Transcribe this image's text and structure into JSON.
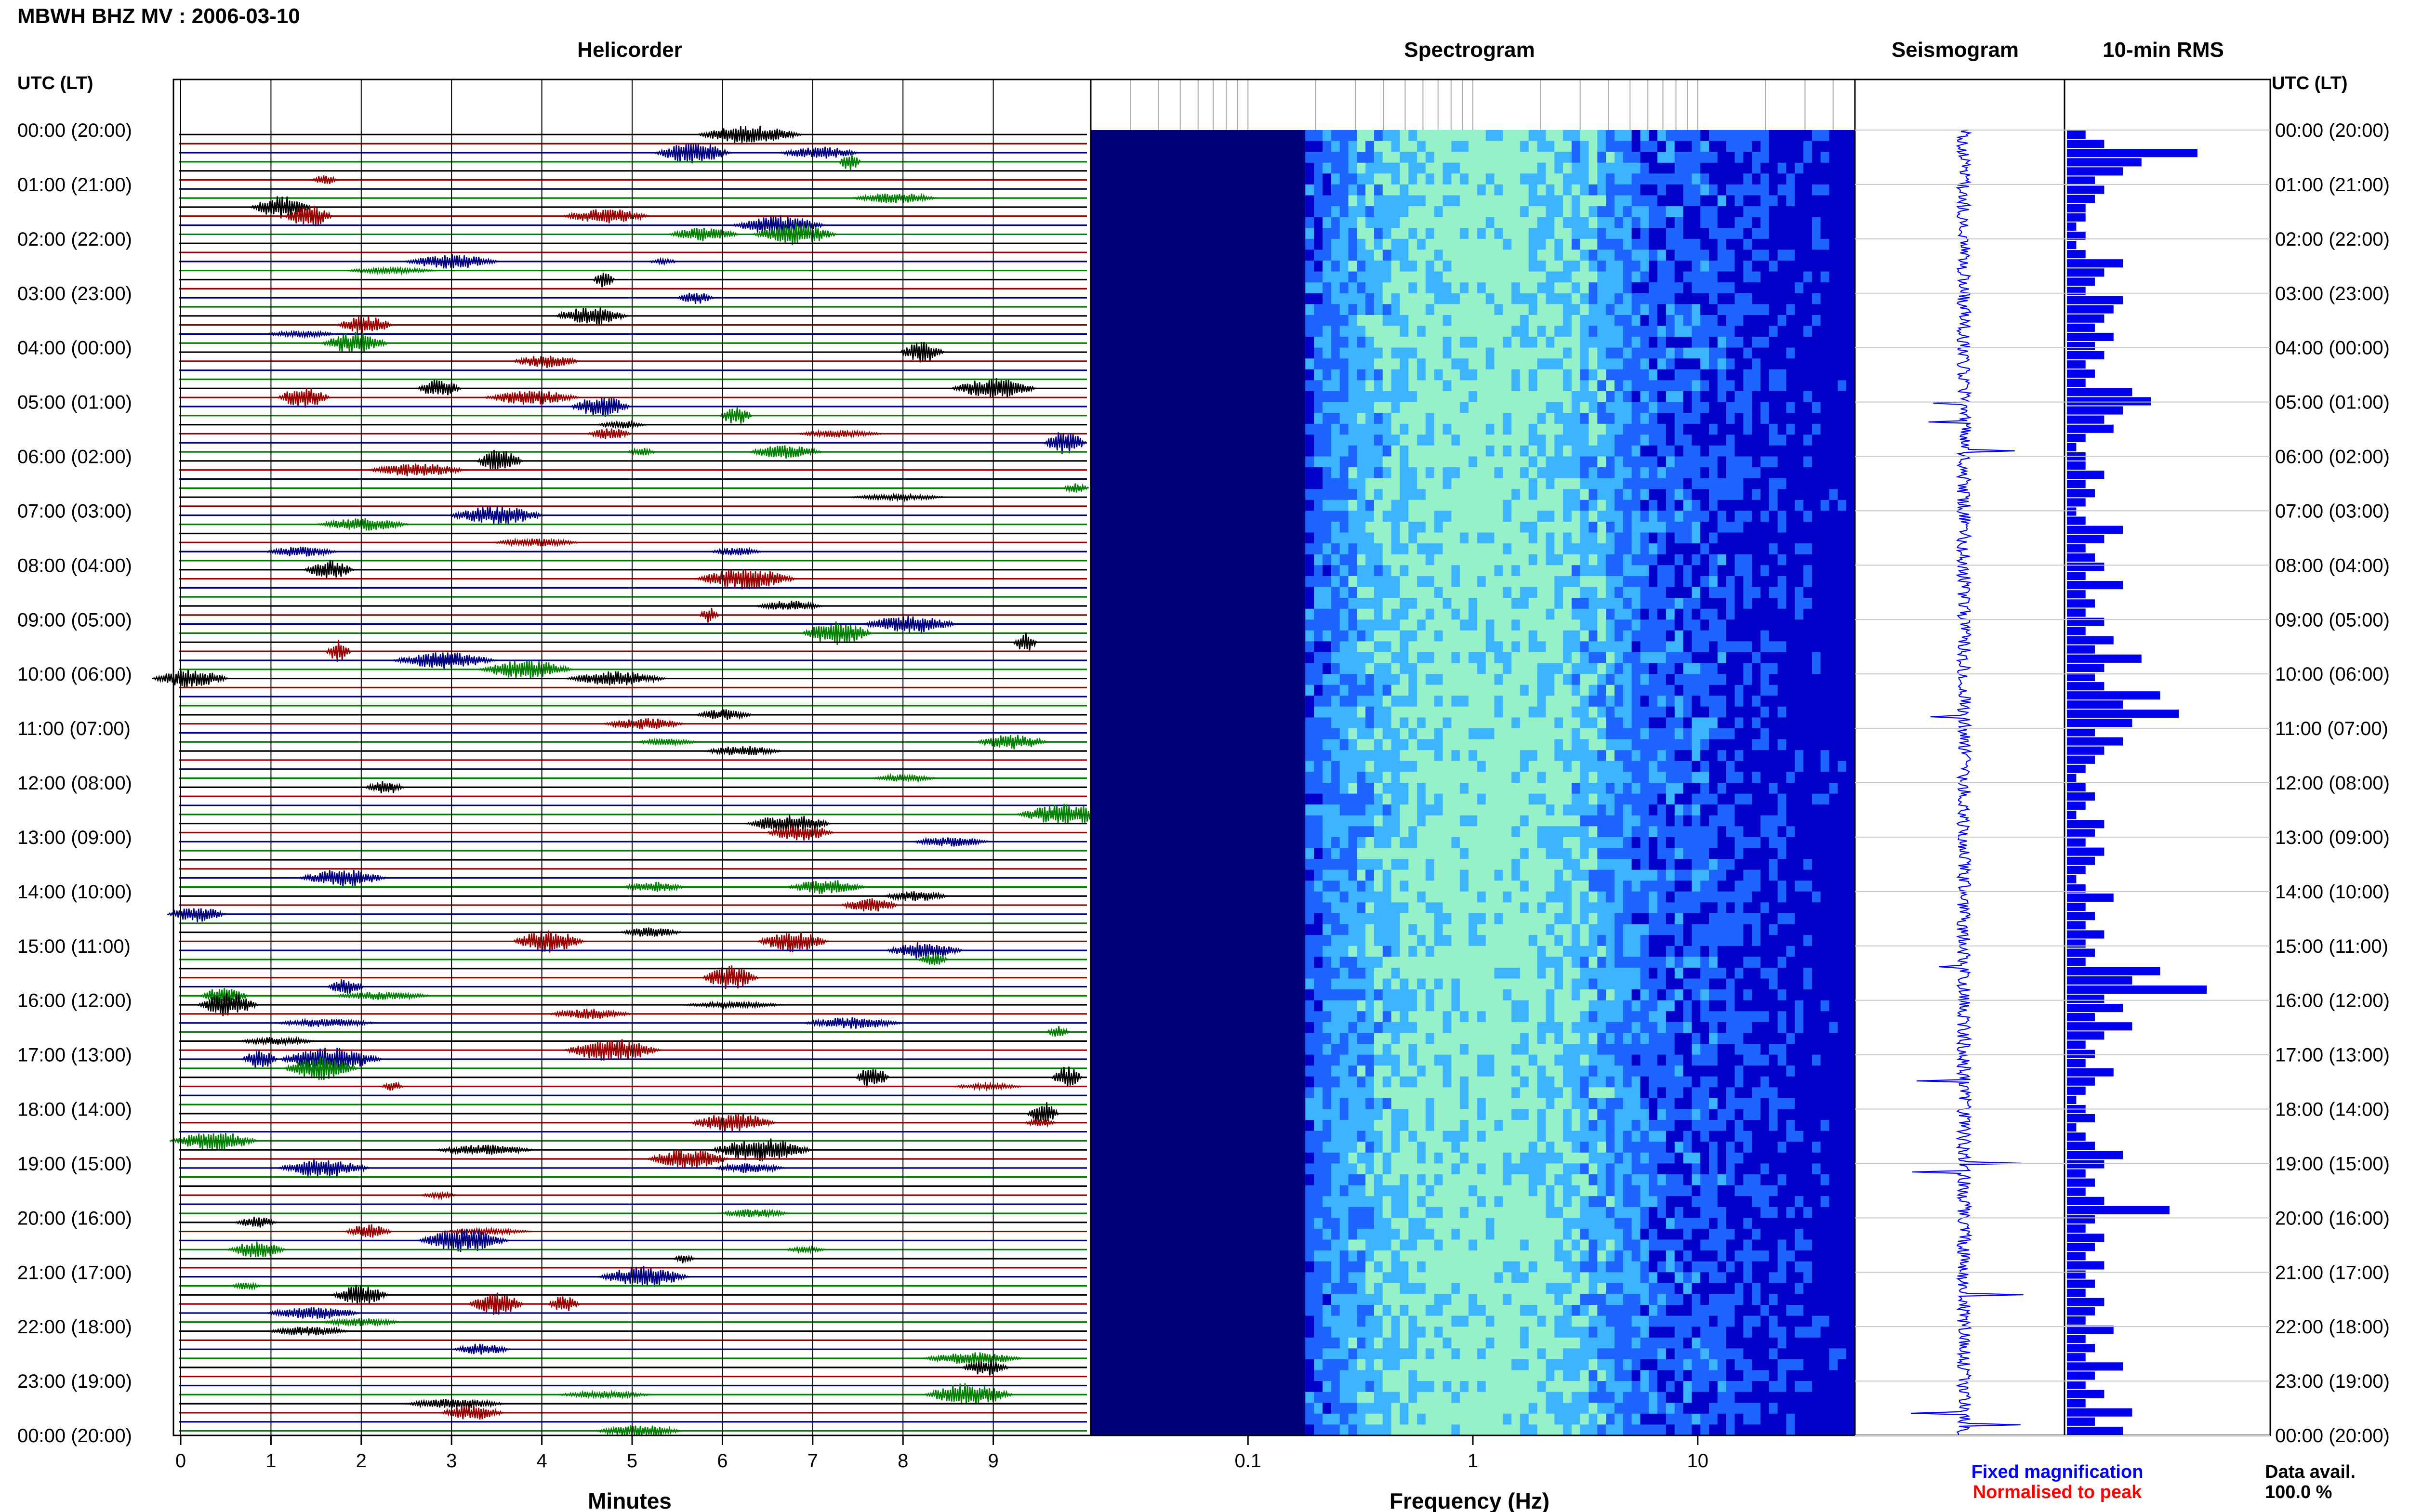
{
  "figure": {
    "title": "MBWH BHZ MV : 2006-03-10",
    "row_header_left": "UTC (LT)",
    "row_header_right": "UTC (LT)"
  },
  "panels": {
    "helicorder": {
      "title": "Helicorder",
      "xlabel": "Minutes"
    },
    "spectrogram": {
      "title": "Spectrogram",
      "xlabel": "Frequency (Hz)"
    },
    "seismogram": {
      "title": "Seismogram"
    },
    "rms": {
      "title": "10-min RMS"
    }
  },
  "legend": {
    "fixed": {
      "label": "Fixed magnification",
      "color": "#0000ff"
    },
    "normalised": {
      "label": "Normalised to peak",
      "color": "#ff0000"
    }
  },
  "data_avail": {
    "label": "Data avail.",
    "value": "100.0 %"
  },
  "chart_data": {
    "type": "heatmap",
    "time_labels": [
      "00:00 (20:00)",
      "01:00 (21:00)",
      "02:00 (22:00)",
      "03:00 (23:00)",
      "04:00 (00:00)",
      "05:00 (01:00)",
      "06:00 (02:00)",
      "07:00 (03:00)",
      "08:00 (04:00)",
      "09:00 (05:00)",
      "10:00 (06:00)",
      "11:00 (07:00)",
      "12:00 (08:00)",
      "13:00 (09:00)",
      "14:00 (10:00)",
      "15:00 (11:00)",
      "16:00 (12:00)",
      "17:00 (13:00)",
      "18:00 (14:00)",
      "19:00 (15:00)",
      "20:00 (16:00)",
      "21:00 (17:00)",
      "22:00 (18:00)",
      "23:00 (19:00)",
      "00:00 (20:00)"
    ],
    "helicorder": {
      "x_ticks": [
        "0",
        "1",
        "2",
        "3",
        "4",
        "5",
        "6",
        "7",
        "8",
        "9"
      ],
      "xlim": [
        0,
        10
      ],
      "trace_colors": [
        "#000000",
        "#990000",
        "#000080",
        "#008000"
      ]
    },
    "spectrogram": {
      "x_ticks": [
        "0.1",
        "1",
        "10"
      ],
      "x_tick_values": [
        0.1,
        1,
        10
      ],
      "xlim": [
        0.02,
        50
      ],
      "scale": "log",
      "colormap": [
        "#00007a",
        "#0000c8",
        "#1e64ff",
        "#3cb4ff",
        "#96f0c8"
      ]
    },
    "rms_color": "#0000ee",
    "rms_values": [
      0.1,
      0.2,
      0.7,
      0.4,
      0.3,
      0.15,
      0.2,
      0.15,
      0.1,
      0.1,
      0.05,
      0.1,
      0.05,
      0.1,
      0.3,
      0.2,
      0.15,
      0.1,
      0.3,
      0.25,
      0.2,
      0.15,
      0.25,
      0.15,
      0.2,
      0.1,
      0.15,
      0.1,
      0.35,
      0.45,
      0.3,
      0.2,
      0.25,
      0.1,
      0.05,
      0.1,
      0.1,
      0.2,
      0.1,
      0.15,
      0.1,
      0.05,
      0.1,
      0.3,
      0.2,
      0.1,
      0.15,
      0.2,
      0.1,
      0.3,
      0.1,
      0.15,
      0.1,
      0.2,
      0.1,
      0.25,
      0.15,
      0.4,
      0.2,
      0.15,
      0.2,
      0.5,
      0.3,
      0.6,
      0.35,
      0.15,
      0.3,
      0.2,
      0.15,
      0.1,
      0.05,
      0.1,
      0.15,
      0.1,
      0.05,
      0.2,
      0.15,
      0.1,
      0.2,
      0.15,
      0.1,
      0.05,
      0.1,
      0.25,
      0.1,
      0.15,
      0.1,
      0.2,
      0.1,
      0.15,
      0.1,
      0.5,
      0.35,
      0.75,
      0.2,
      0.3,
      0.15,
      0.35,
      0.2,
      0.1,
      0.15,
      0.1,
      0.25,
      0.15,
      0.1,
      0.05,
      0.1,
      0.15,
      0.05,
      0.1,
      0.15,
      0.3,
      0.2,
      0.1,
      0.15,
      0.1,
      0.2,
      0.55,
      0.15,
      0.1,
      0.2,
      0.15,
      0.1,
      0.2,
      0.1,
      0.15,
      0.1,
      0.2,
      0.15,
      0.1,
      0.25,
      0.1,
      0.15,
      0.1,
      0.3,
      0.15,
      0.1,
      0.2,
      0.1,
      0.35,
      0.15,
      0.3
    ]
  }
}
